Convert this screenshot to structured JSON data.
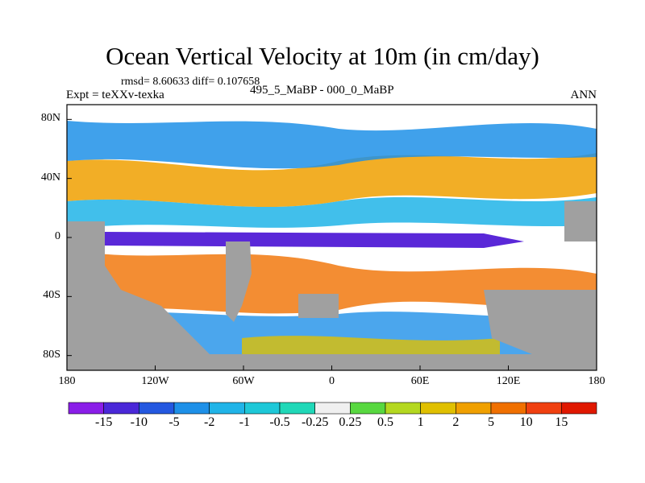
{
  "title": "Ocean Vertical Velocity at 10m (in cm/day)",
  "stats": "rmsd= 8.60633 diff= 0.107658",
  "experiment": "Expt = teXXv-texka",
  "subtitle": "495_5_MaBP - 000_0_MaBP",
  "season": "ANN",
  "map": {
    "lat_ticks": [
      "80N",
      "40N",
      "0",
      "40S",
      "80S"
    ],
    "lat_values": [
      80,
      40,
      0,
      -40,
      -80
    ],
    "lon_ticks": [
      "180",
      "120W",
      "60W",
      "0",
      "60E",
      "120E",
      "180"
    ],
    "lon_values": [
      -180,
      -120,
      -60,
      0,
      60,
      120,
      180
    ],
    "land_color": "#a0a0a0",
    "ocean_background_color": "#ffffff"
  },
  "colorbar": {
    "labels": [
      "-15",
      "-10",
      "-5",
      "-2",
      "-1",
      "-0.5",
      "-0.25",
      "0.25",
      "0.5",
      "1",
      "2",
      "5",
      "10",
      "15"
    ],
    "colors": [
      "#8a1ee8",
      "#4a28d8",
      "#2458e0",
      "#1e90e8",
      "#20b4e8",
      "#1ec8d8",
      "#20d8b8",
      "#f0f0f0",
      "#58d840",
      "#b4d820",
      "#e0c000",
      "#f0a000",
      "#f07000",
      "#f04010",
      "#e01800"
    ]
  }
}
